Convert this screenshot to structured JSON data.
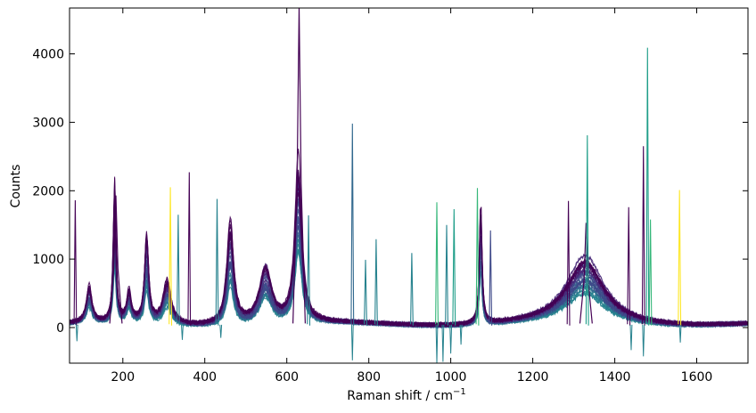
{
  "chart_data": {
    "type": "line",
    "title": "",
    "xlabel": "Raman shift / cm",
    "xlabel_superscript": "−1",
    "ylabel": "Counts",
    "xlim": [
      70,
      1725
    ],
    "ylim": [
      -520,
      4670
    ],
    "xticks": [
      200,
      400,
      600,
      800,
      1000,
      1200,
      1400,
      1600
    ],
    "yticks": [
      0,
      1000,
      2000,
      3000,
      4000
    ],
    "grid": false,
    "legend": "none",
    "colormap": "viridis",
    "palette": [
      "#440154",
      "#482878",
      "#3e4989",
      "#31688e",
      "#26828e",
      "#1f9e89",
      "#35b779",
      "#6ece58",
      "#b5de2b",
      "#fde725"
    ],
    "series_count": 40,
    "baseline_peaks": [
      {
        "x": 118,
        "height": 520,
        "width": 8
      },
      {
        "x": 180,
        "height": 1880,
        "width": 4
      },
      {
        "x": 215,
        "height": 430,
        "width": 7
      },
      {
        "x": 258,
        "height": 1200,
        "width": 6
      },
      {
        "x": 308,
        "height": 620,
        "width": 12
      },
      {
        "x": 462,
        "height": 1400,
        "width": 10
      },
      {
        "x": 548,
        "height": 820,
        "width": 18
      },
      {
        "x": 628,
        "height": 2300,
        "width": 10
      },
      {
        "x": 1073,
        "height": 1650,
        "width": 4
      },
      {
        "x": 1328,
        "height": 1000,
        "width": 55
      }
    ],
    "max_trace_peaks": [
      {
        "x": 630,
        "value": 4680
      },
      {
        "x": 183,
        "value": 1930
      },
      {
        "x": 1330,
        "value": 1530
      }
    ],
    "cosmic_spikes": [
      {
        "x": 84,
        "value": 1860,
        "color": "#440154"
      },
      {
        "x": 316,
        "value": 2050,
        "color": "#fde725"
      },
      {
        "x": 335,
        "value": 1650,
        "color": "#26828e"
      },
      {
        "x": 362,
        "value": 2270,
        "color": "#440154"
      },
      {
        "x": 430,
        "value": 1880,
        "color": "#26828e"
      },
      {
        "x": 653,
        "value": 1640,
        "color": "#26828e"
      },
      {
        "x": 760,
        "value": 2980,
        "color": "#31688e"
      },
      {
        "x": 792,
        "value": 990,
        "color": "#26828e"
      },
      {
        "x": 818,
        "value": 1290,
        "color": "#26828e"
      },
      {
        "x": 905,
        "value": 1090,
        "color": "#26828e"
      },
      {
        "x": 966,
        "value": 1830,
        "color": "#35b779"
      },
      {
        "x": 990,
        "value": 1500,
        "color": "#26828e"
      },
      {
        "x": 1008,
        "value": 1730,
        "color": "#1f9e89"
      },
      {
        "x": 1065,
        "value": 2040,
        "color": "#35b779"
      },
      {
        "x": 1097,
        "value": 1420,
        "color": "#3e4989"
      },
      {
        "x": 1287,
        "value": 1850,
        "color": "#440154"
      },
      {
        "x": 1333,
        "value": 2810,
        "color": "#1f9e89"
      },
      {
        "x": 1434,
        "value": 1760,
        "color": "#440154"
      },
      {
        "x": 1470,
        "value": 2650,
        "color": "#440154"
      },
      {
        "x": 1480,
        "value": 4090,
        "color": "#1f9e89"
      },
      {
        "x": 1487,
        "value": 1580,
        "color": "#35b779"
      },
      {
        "x": 1558,
        "value": 2010,
        "color": "#fde725"
      }
    ],
    "negative_spikes": [
      {
        "x": 88,
        "value": -200
      },
      {
        "x": 345,
        "value": -180
      },
      {
        "x": 439,
        "value": -150
      },
      {
        "x": 760,
        "value": -480
      },
      {
        "x": 966,
        "value": -520
      },
      {
        "x": 981,
        "value": -500
      },
      {
        "x": 1000,
        "value": -380
      },
      {
        "x": 1025,
        "value": -250
      },
      {
        "x": 1440,
        "value": -330
      },
      {
        "x": 1470,
        "value": -420
      },
      {
        "x": 1560,
        "value": -220
      }
    ]
  }
}
